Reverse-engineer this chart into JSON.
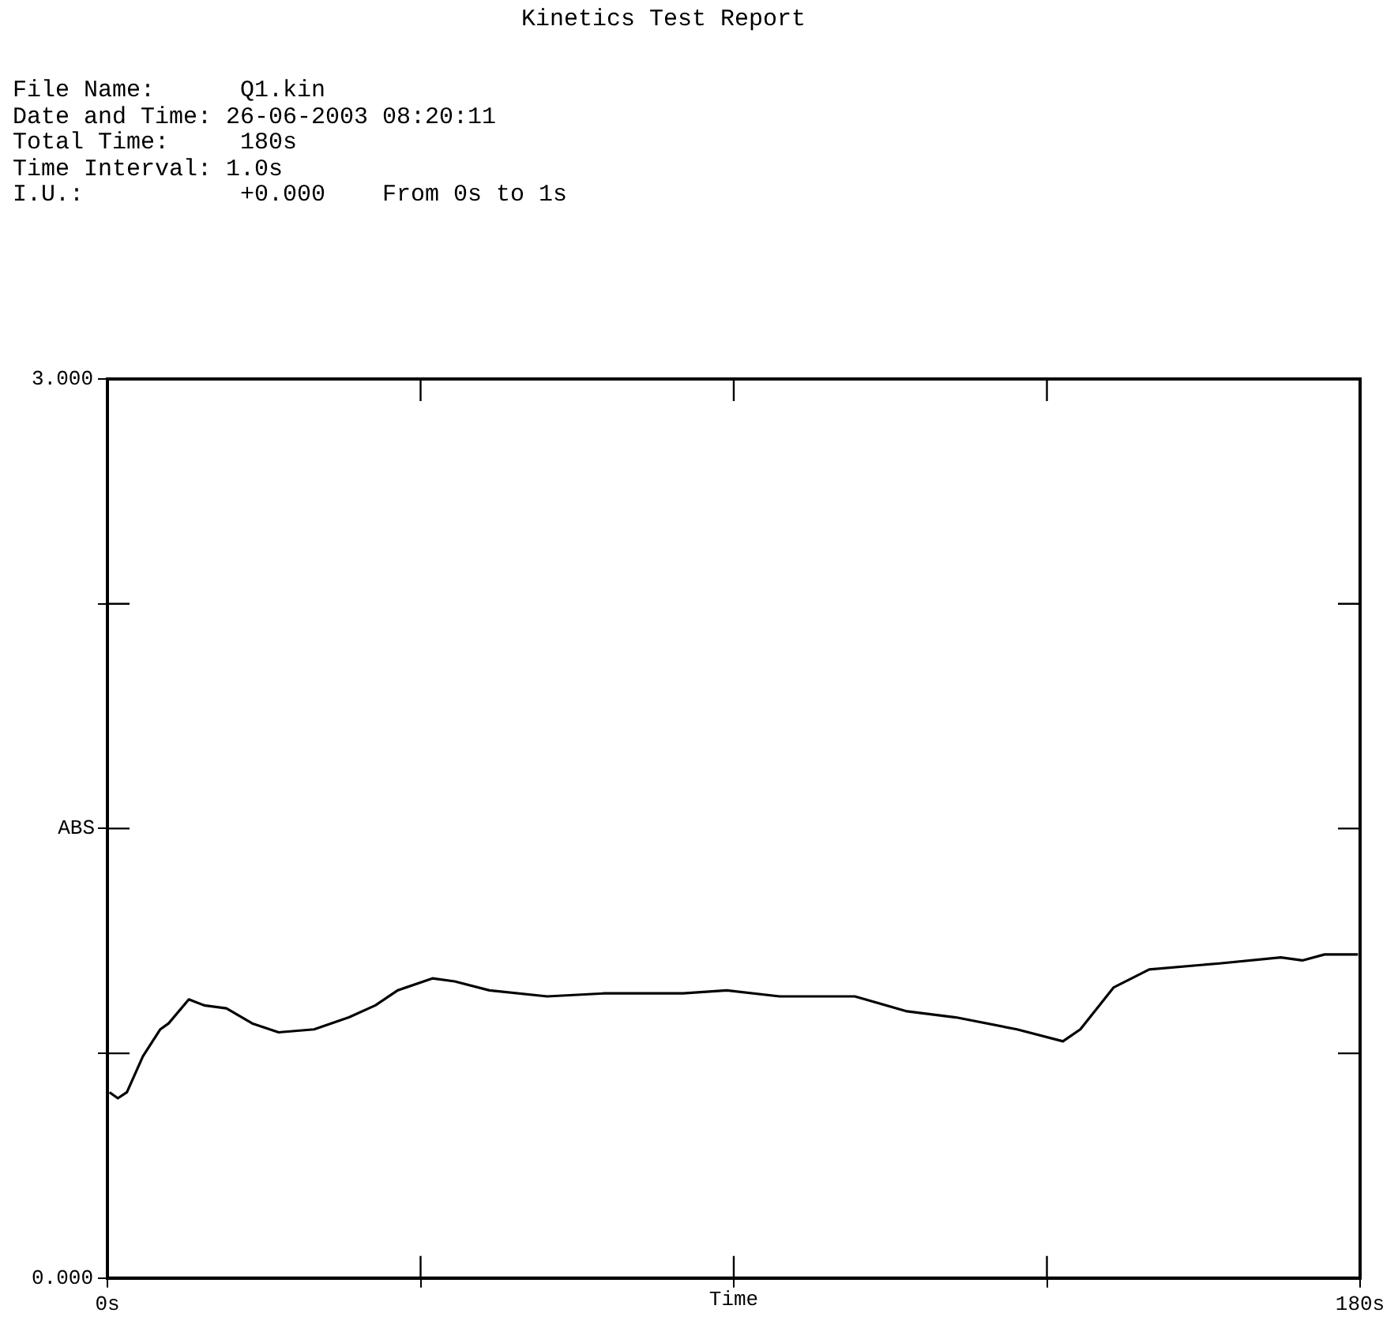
{
  "chart_data": {
    "type": "line",
    "title": "Kinetics Test Report",
    "annotations": [
      "File Name:      Q1.kin",
      "Date and Time: 26-06-2003 08:20:11",
      "Total Time:     180s",
      "Time Interval: 1.0s",
      "I.U.:           +0.000    From 0s to 1s"
    ],
    "xlabel": "Time",
    "ylabel": "ABS",
    "x": [
      0.3,
      1.5,
      2.8,
      5.1,
      7.6,
      8.8,
      11.7,
      13.9,
      17.1,
      20.8,
      24.6,
      29.7,
      34.7,
      38.5,
      41.7,
      46.7,
      49.9,
      54.9,
      63.2,
      71.4,
      82.7,
      89.0,
      96.6,
      107.4,
      114.9,
      121.9,
      130.7,
      137.3,
      139.8,
      144.6,
      149.7,
      159.8,
      168.6,
      171.7,
      174.9,
      179.7
    ],
    "series": [
      {
        "color": "#000000",
        "values": [
          0.62,
          0.6,
          0.62,
          0.74,
          0.83,
          0.85,
          0.93,
          0.91,
          0.9,
          0.85,
          0.82,
          0.83,
          0.87,
          0.91,
          0.96,
          1.0,
          0.99,
          0.96,
          0.94,
          0.95,
          0.95,
          0.96,
          0.94,
          0.94,
          0.89,
          0.87,
          0.83,
          0.79,
          0.83,
          0.97,
          1.03,
          1.05,
          1.07,
          1.06,
          1.08,
          1.08
        ]
      }
    ],
    "xlim": [
      0,
      180
    ],
    "xticks": [
      {
        "value": 0,
        "label": "0s"
      },
      {
        "value": 45,
        "label": null
      },
      {
        "value": 90,
        "label": null
      },
      {
        "value": 135,
        "label": null
      },
      {
        "value": 180,
        "label": "180s"
      }
    ],
    "ylim": [
      0,
      3
    ],
    "yticks": [
      {
        "value": 0,
        "label": "0.000"
      },
      {
        "value": 0.75,
        "label": null
      },
      {
        "value": 1.5,
        "label": null
      },
      {
        "value": 2.25,
        "label": null
      },
      {
        "value": 3,
        "label": "3.000"
      }
    ],
    "grid": false,
    "legend": false,
    "marker": "none",
    "line_style": "solid"
  }
}
